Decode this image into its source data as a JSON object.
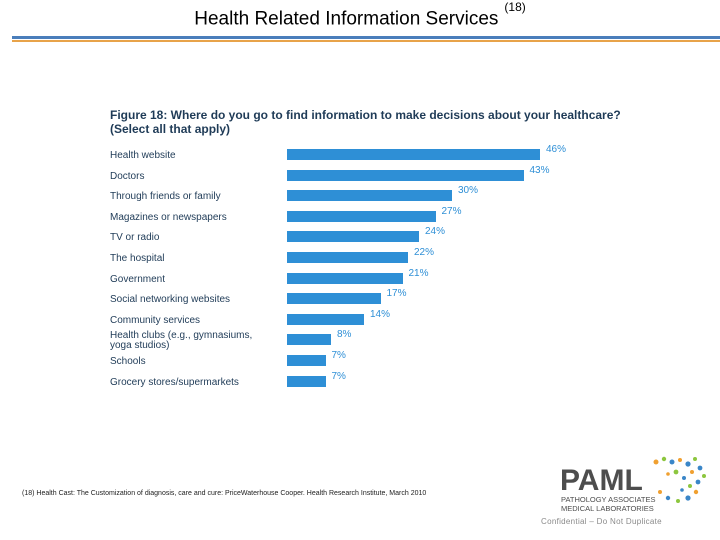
{
  "header": {
    "title": "Health Related Information Services",
    "ref": "(18)",
    "colors": {
      "rule_top": "#4a7ebb",
      "rule_bottom": "#e8a34a"
    }
  },
  "chart_data": {
    "type": "bar",
    "orientation": "horizontal",
    "title": "Figure 18: Where do you go to find information to make decisions about your healthcare? (Select all that apply)",
    "categories": [
      "Health website",
      "Doctors",
      "Through friends or family",
      "Magazines or newspapers",
      "TV or radio",
      "The hospital",
      "Government",
      "Social networking websites",
      "Community services",
      "Health clubs (e.g., gymnasiums, yoga studios)",
      "Schools",
      "Grocery stores/supermarkets"
    ],
    "values": [
      46,
      43,
      30,
      27,
      24,
      22,
      21,
      17,
      14,
      8,
      7,
      7
    ],
    "value_labels": [
      "46%",
      "43%",
      "30%",
      "27%",
      "24%",
      "22%",
      "21%",
      "17%",
      "14%",
      "8%",
      "7%",
      "7%"
    ],
    "xlim": [
      0,
      50
    ],
    "grid": false,
    "bar_color": "#2e8fd6"
  },
  "footnote": "(18) Health Cast: The Customization of diagnosis, care and cure: PriceWaterhouse Cooper. Health Research Institute, March 2010",
  "logo": {
    "brand": "PAML",
    "line1": "PATHOLOGY ASSOCIATES",
    "line2": "MEDICAL LABORATORIES",
    "colors": {
      "text": "#4d4d4d",
      "dot_orange": "#f0a030",
      "dot_blue": "#3a86c8",
      "dot_green": "#8cc63e"
    }
  },
  "confidential": "Confidential – Do Not Duplicate"
}
